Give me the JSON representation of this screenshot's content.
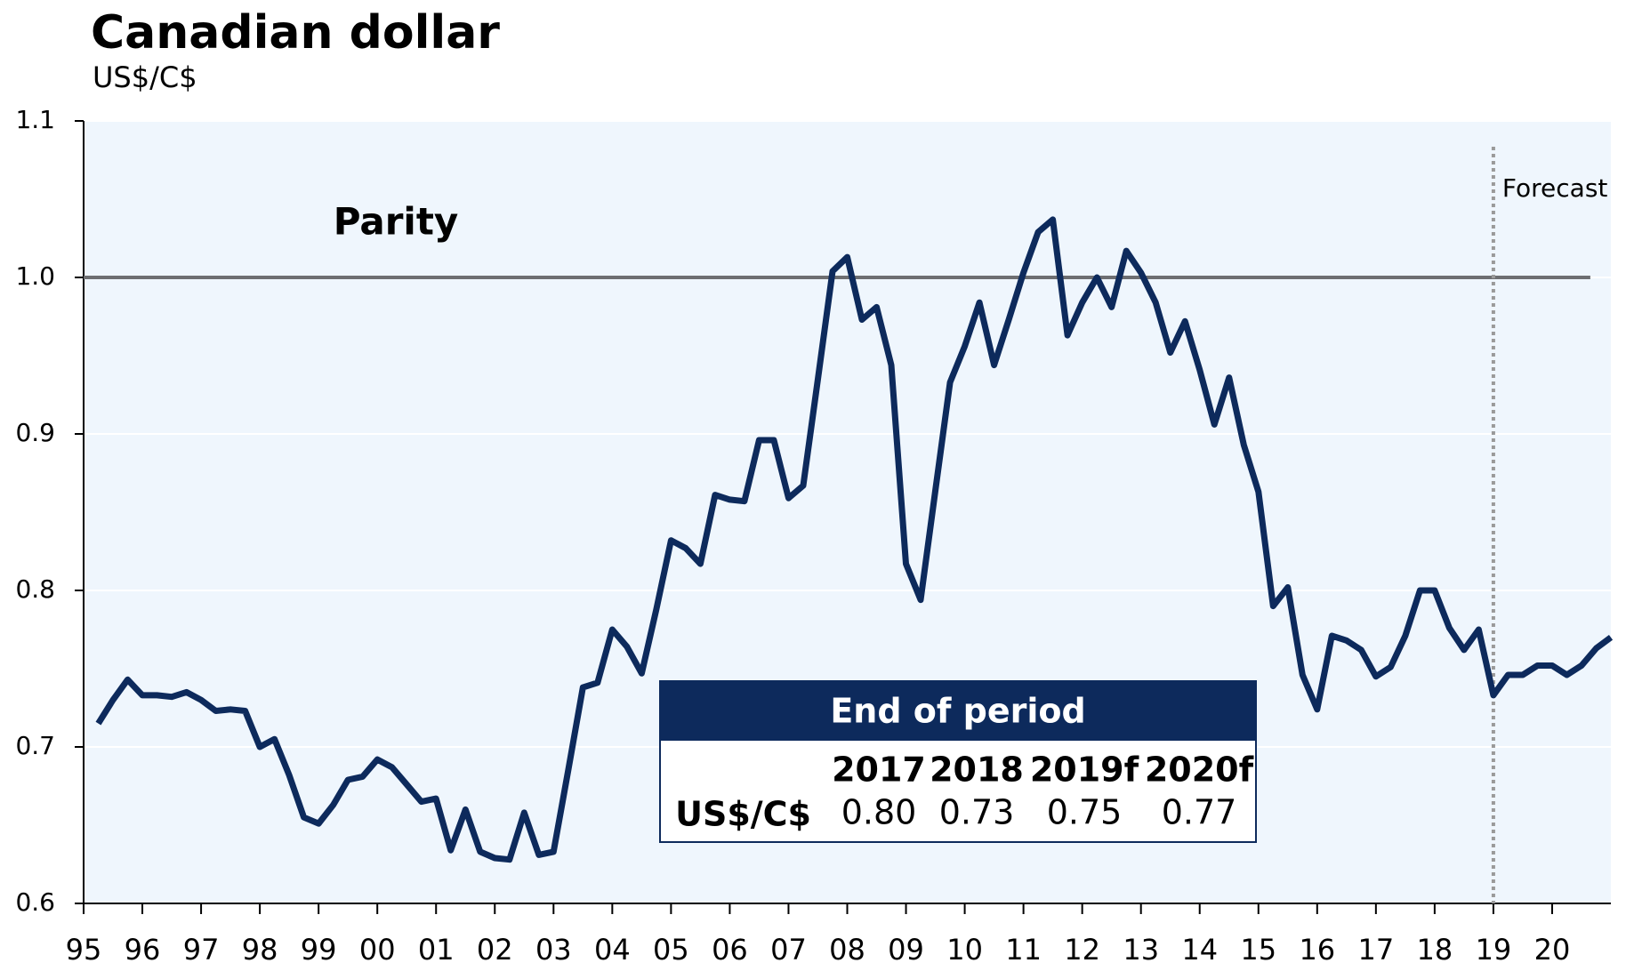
{
  "chart_data": {
    "type": "line",
    "title": "Canadian dollar",
    "subtitle": "US$/C$",
    "x": [
      1995.25,
      1995.5,
      1995.75,
      1996,
      1996.25,
      1996.5,
      1996.75,
      1997,
      1997.25,
      1997.5,
      1997.75,
      1998,
      1998.25,
      1998.5,
      1998.75,
      1999,
      1999.25,
      1999.5,
      1999.75,
      2000,
      2000.25,
      2000.5,
      2000.75,
      2001,
      2001.25,
      2001.5,
      2001.75,
      2002,
      2002.25,
      2002.5,
      2002.75,
      2003,
      2003.25,
      2003.5,
      2003.75,
      2004,
      2004.25,
      2004.5,
      2004.75,
      2005,
      2005.25,
      2005.5,
      2005.75,
      2006,
      2006.25,
      2006.5,
      2006.75,
      2007,
      2007.25,
      2007.5,
      2007.75,
      2008,
      2008.25,
      2008.5,
      2008.75,
      2009,
      2009.25,
      2009.5,
      2009.75,
      2010,
      2010.25,
      2010.5,
      2010.75,
      2011,
      2011.25,
      2011.5,
      2011.75,
      2012,
      2012.25,
      2012.5,
      2012.75,
      2013,
      2013.25,
      2013.5,
      2013.75,
      2014,
      2014.25,
      2014.5,
      2014.75,
      2015,
      2015.25,
      2015.5,
      2015.75,
      2016,
      2016.25,
      2016.5,
      2016.75,
      2017,
      2017.25,
      2017.5,
      2017.75,
      2018,
      2018.25,
      2018.5,
      2018.75,
      2019,
      2019.25,
      2019.5,
      2019.75,
      2020,
      2020.25,
      2020.5,
      2020.75,
      2021
    ],
    "series": [
      {
        "name": "US$/C$",
        "color": "#0d2a5c",
        "values": [
          0.715,
          0.73,
          0.743,
          0.733,
          0.733,
          0.732,
          0.735,
          0.73,
          0.723,
          0.724,
          0.723,
          0.7,
          0.705,
          0.682,
          0.655,
          0.651,
          0.663,
          0.679,
          0.681,
          0.692,
          0.687,
          0.676,
          0.665,
          0.667,
          0.634,
          0.66,
          0.633,
          0.629,
          0.628,
          0.658,
          0.631,
          0.633,
          0.685,
          0.738,
          0.741,
          0.775,
          0.764,
          0.747,
          0.788,
          0.832,
          0.827,
          0.817,
          0.861,
          0.858,
          0.857,
          0.896,
          0.896,
          0.859,
          0.867,
          0.935,
          1.004,
          1.013,
          0.973,
          0.981,
          0.944,
          0.817,
          0.794,
          0.864,
          0.933,
          0.956,
          0.984,
          0.944,
          0.973,
          1.003,
          1.029,
          1.037,
          0.963,
          0.984,
          1.0,
          0.981,
          1.017,
          1.003,
          0.984,
          0.952,
          0.972,
          0.941,
          0.906,
          0.936,
          0.893,
          0.863,
          0.79,
          0.802,
          0.746,
          0.724,
          0.771,
          0.768,
          0.762,
          0.745,
          0.751,
          0.771,
          0.8,
          0.8,
          0.776,
          0.762,
          0.775,
          0.733,
          0.746,
          0.746,
          0.752,
          0.752,
          0.746,
          0.752,
          0.763,
          0.77
        ]
      }
    ],
    "xlim": [
      1995,
      2021
    ],
    "xticks": [
      {
        "value": 1995,
        "label": "95"
      },
      {
        "value": 1996,
        "label": "96"
      },
      {
        "value": 1997,
        "label": "97"
      },
      {
        "value": 1998,
        "label": "98"
      },
      {
        "value": 1999,
        "label": "99"
      },
      {
        "value": 2000,
        "label": "00"
      },
      {
        "value": 2001,
        "label": "01"
      },
      {
        "value": 2002,
        "label": "02"
      },
      {
        "value": 2003,
        "label": "03"
      },
      {
        "value": 2004,
        "label": "04"
      },
      {
        "value": 2005,
        "label": "05"
      },
      {
        "value": 2006,
        "label": "06"
      },
      {
        "value": 2007,
        "label": "07"
      },
      {
        "value": 2008,
        "label": "08"
      },
      {
        "value": 2009,
        "label": "09"
      },
      {
        "value": 2010,
        "label": "10"
      },
      {
        "value": 2011,
        "label": "11"
      },
      {
        "value": 2012,
        "label": "12"
      },
      {
        "value": 2013,
        "label": "13"
      },
      {
        "value": 2014,
        "label": "14"
      },
      {
        "value": 2015,
        "label": "15"
      },
      {
        "value": 2016,
        "label": "16"
      },
      {
        "value": 2017,
        "label": "17"
      },
      {
        "value": 2018,
        "label": "18"
      },
      {
        "value": 2019,
        "label": "19"
      },
      {
        "value": 2020,
        "label": "20"
      }
    ],
    "ylim": [
      0.6,
      1.1
    ],
    "yticks": [
      0.6,
      0.7,
      0.8,
      0.9,
      {
        "value": 1.0,
        "label": "1.0"
      },
      1.1
    ],
    "grid": true,
    "reference_line": {
      "label": "Parity",
      "value": 1.0,
      "x_end": 2020.65,
      "color": "#6d6e71"
    },
    "forecast_start": {
      "label": "Forecast",
      "x": 2019
    },
    "table": {
      "title": "End of period",
      "columns": [
        "2017",
        "2018",
        "2019f",
        "2020f"
      ],
      "row_label": "US$/C$",
      "values": [
        "0.80",
        "0.73",
        "0.75",
        "0.77"
      ]
    }
  }
}
